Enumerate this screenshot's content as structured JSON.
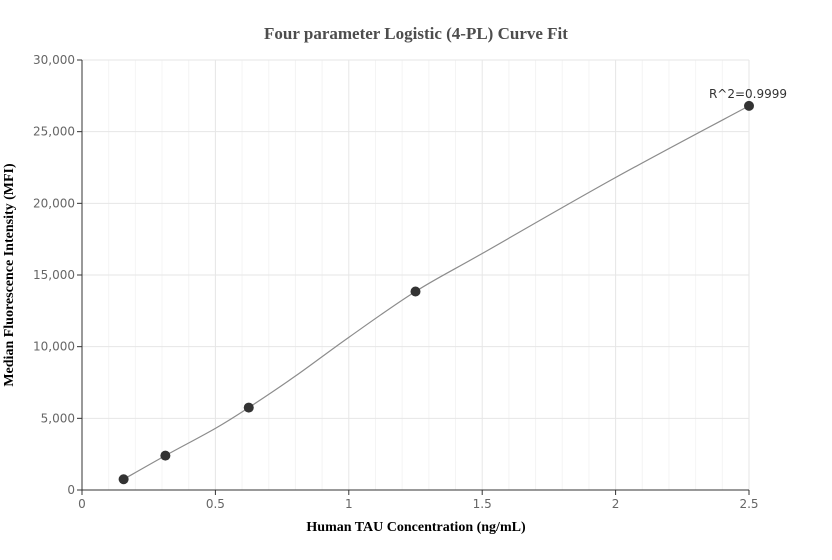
{
  "chart_data": {
    "type": "scatter",
    "title": "Four parameter Logistic (4-PL) Curve Fit",
    "xlabel": "Human TAU Concentration (ng/mL)",
    "ylabel": "Median Fluorescence Intensity (MFI)",
    "xlim": [
      0,
      2.5
    ],
    "ylim": [
      0,
      30000
    ],
    "x_ticks": [
      0,
      0.5,
      1,
      1.5,
      2,
      2.5
    ],
    "x_tick_labels": [
      "0",
      "0.5",
      "1",
      "1.5",
      "2",
      "2.5"
    ],
    "x_minor_tick_step": 0.1,
    "y_ticks": [
      0,
      5000,
      10000,
      15000,
      20000,
      25000,
      30000
    ],
    "y_tick_labels": [
      "0",
      "5,000",
      "10,000",
      "15,000",
      "20,000",
      "25,000",
      "30,000"
    ],
    "grid": true,
    "legend": "none",
    "points": [
      {
        "x": 0.156,
        "y": 750
      },
      {
        "x": 0.3125,
        "y": 2400
      },
      {
        "x": 0.625,
        "y": 5750
      },
      {
        "x": 1.25,
        "y": 13850
      },
      {
        "x": 2.5,
        "y": 26800
      }
    ],
    "fit_curve": [
      {
        "x": 0.156,
        "y": 750
      },
      {
        "x": 0.3125,
        "y": 2400
      },
      {
        "x": 0.5,
        "y": 4300
      },
      {
        "x": 0.625,
        "y": 5750
      },
      {
        "x": 0.8,
        "y": 7950
      },
      {
        "x": 1.0,
        "y": 10650
      },
      {
        "x": 1.25,
        "y": 13850
      },
      {
        "x": 1.5,
        "y": 16500
      },
      {
        "x": 2.0,
        "y": 21800
      },
      {
        "x": 2.5,
        "y": 26800
      }
    ],
    "annotation": {
      "text": "R^2=0.9999",
      "x": 2.5,
      "y": 26800
    }
  },
  "colors": {
    "point": "#333333",
    "curve": "#8c8c8c",
    "grid_major": "#e6e6e6",
    "grid_minor": "#f4f4f4",
    "axis": "#333333"
  }
}
